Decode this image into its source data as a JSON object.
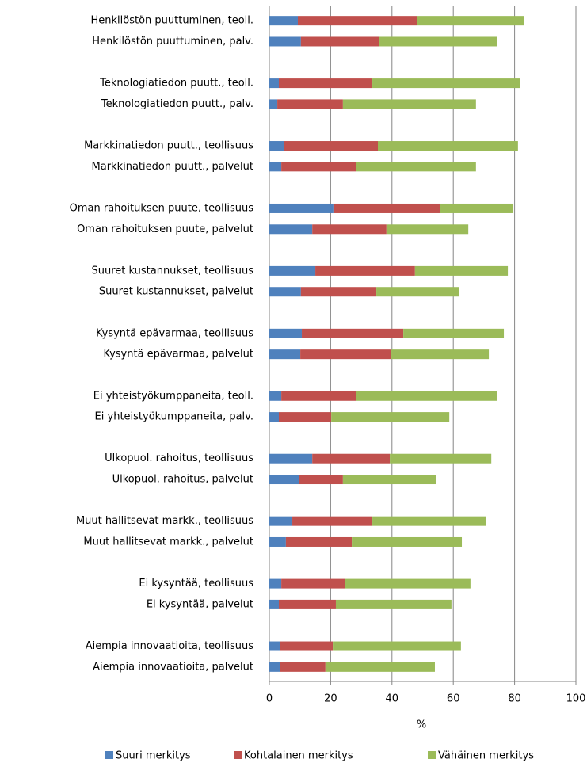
{
  "chart_data": {
    "type": "stacked_barh",
    "categories": [
      "Henkilöstön puuttuminen, teoll.",
      "Henkilöstön puuttuminen, palv.",
      null,
      "Teknologiatiedon puutt., teoll.",
      "Teknologiatiedon puutt., palv.",
      null,
      "Markkinatiedon puutt., teollisuus",
      "Markkinatiedon puutt., palvelut",
      null,
      "Oman rahoituksen puute, teollisuus",
      "Oman rahoituksen puute, palvelut",
      null,
      "Suuret kustannukset, teollisuus",
      "Suuret kustannukset, palvelut",
      null,
      "Kysyntä epävarmaa, teollisuus",
      "Kysyntä epävarmaa, palvelut",
      null,
      "Ei yhteistyökumppaneita, teoll.",
      "Ei yhteistyökumppaneita, palv.",
      null,
      "Ulkopuol. rahoitus, teollisuus",
      "Ulkopuol. rahoitus, palvelut",
      null,
      "Muut hallitsevat markk., teollisuus",
      "Muut hallitsevat markk., palvelut",
      null,
      "Ei kysyntää, teollisuus",
      "Ei kysyntää, palvelut",
      null,
      "Aiempia innovaatioita, teollisuus",
      "Aiempia innovaatioita, palvelut"
    ],
    "series": [
      {
        "name": "Suuri merkitys",
        "color": "#4f81bd",
        "values": [
          9.3,
          10.3,
          null,
          3.1,
          2.6,
          null,
          4.7,
          3.9,
          null,
          20.9,
          14,
          null,
          15,
          10.3,
          null,
          10.6,
          10.1,
          null,
          3.9,
          3.1,
          null,
          14,
          9.6,
          null,
          7.5,
          5.4,
          null,
          3.9,
          3.1,
          null,
          3.4,
          3.4
        ]
      },
      {
        "name": "Kohtalainen merkitys",
        "color": "#c0504d",
        "values": [
          39,
          25.6,
          null,
          30.5,
          21.4,
          null,
          30.7,
          24.3,
          null,
          34.7,
          24.2,
          null,
          32.5,
          24.6,
          null,
          33.1,
          29.7,
          null,
          24.5,
          17.1,
          null,
          25.3,
          14.4,
          null,
          26.1,
          21.5,
          null,
          20.9,
          18.6,
          null,
          17.3,
          14.9
        ]
      },
      {
        "name": "Vähäinen merkitys",
        "color": "#9bbb59",
        "values": [
          34.9,
          38.5,
          null,
          48.1,
          43.4,
          null,
          45.7,
          39.2,
          null,
          24,
          26.7,
          null,
          30.3,
          27.1,
          null,
          32.8,
          31.8,
          null,
          46,
          38.5,
          null,
          33.1,
          30.5,
          null,
          37.2,
          35.9,
          null,
          40.8,
          37.7,
          null,
          41.8,
          35.7
        ]
      }
    ],
    "xlabel": "%",
    "xlim": [
      0,
      100
    ],
    "xticks": [
      0,
      20,
      40,
      60,
      80,
      100
    ],
    "grid": true,
    "legend": "bottom"
  }
}
